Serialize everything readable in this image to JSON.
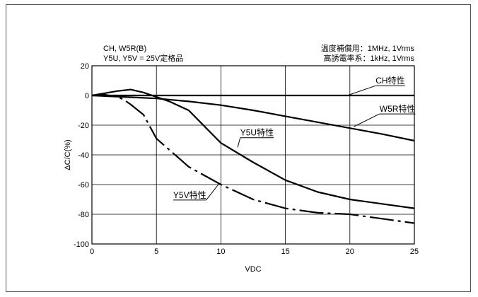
{
  "chart_data": {
    "type": "line",
    "xlabel": "VDC",
    "ylabel": "ΔC/C(%)",
    "xlim": [
      0,
      25
    ],
    "ylim": [
      -100,
      20
    ],
    "x_ticks": [
      0,
      5,
      10,
      15,
      20,
      25
    ],
    "y_ticks": [
      20,
      0,
      -20,
      -40,
      -60,
      -80,
      -100
    ],
    "grid": true,
    "header_left": [
      "CH, W5R(B)",
      "Y5U, Y5V = 25V定格品"
    ],
    "header_right": [
      "温度補償用：1MHz, 1Vrms",
      "高誘電率系：1kHz, 1Vrms"
    ],
    "series": [
      {
        "name": "CH特性",
        "style": "solid",
        "x": [
          0,
          5,
          10,
          15,
          20,
          25
        ],
        "y": [
          0,
          0,
          0,
          0,
          0,
          0
        ]
      },
      {
        "name": "W5R特性",
        "style": "solid",
        "x": [
          0,
          2.5,
          5,
          7.5,
          10,
          12.5,
          15,
          17.5,
          20,
          22.5,
          25
        ],
        "y": [
          0,
          -1,
          -2,
          -4,
          -6.5,
          -10,
          -14,
          -18,
          -22,
          -26,
          -30.5
        ]
      },
      {
        "name": "Y5U特性",
        "style": "solid",
        "x": [
          0,
          1,
          2,
          3,
          4,
          5,
          6,
          7.5,
          10,
          12.5,
          15,
          17.5,
          20,
          22.5,
          25
        ],
        "y": [
          0,
          1.5,
          3,
          4,
          2,
          -1,
          -4,
          -10,
          -32,
          -45,
          -57,
          -65,
          -70,
          -73,
          -76
        ]
      },
      {
        "name": "Y5V特性",
        "style": "dashdot",
        "x": [
          0,
          1,
          2,
          2.5,
          3,
          4,
          5,
          7.5,
          10,
          12.5,
          15,
          17.5,
          20,
          22.5,
          25
        ],
        "y": [
          0,
          0.5,
          -1,
          -3,
          -6,
          -13,
          -29,
          -48,
          -60,
          -70,
          -76,
          -79,
          -80,
          -83,
          -86
        ]
      }
    ],
    "annotations": [
      {
        "text": "CH特性",
        "x": 22,
        "y": 8
      },
      {
        "text": "W5R特性",
        "x": 22.3,
        "y": -11
      },
      {
        "text": "Y5U特性",
        "x": 11.5,
        "y": -27
      },
      {
        "text": "Y5V特性",
        "x": 6.3,
        "y": -69
      }
    ]
  }
}
